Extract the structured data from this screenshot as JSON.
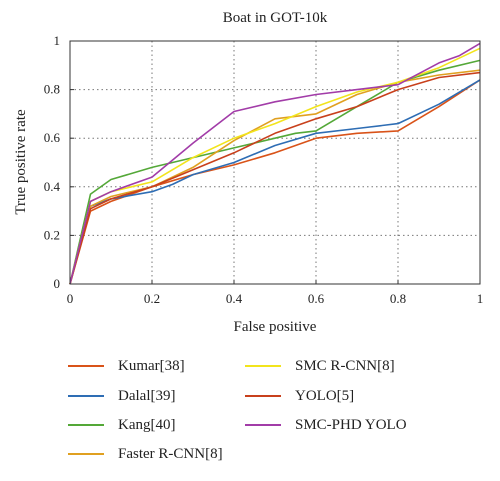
{
  "chart_data": {
    "type": "line",
    "title": "Boat in GOT-10k",
    "xlabel": "False positive",
    "ylabel": "True positive rate",
    "xlim": [
      0,
      1
    ],
    "ylim": [
      0,
      1
    ],
    "xticks": [
      "0",
      "0.2",
      "0.4",
      "0.6",
      "0.8",
      "1"
    ],
    "yticks": [
      "0",
      "0.2",
      "0.4",
      "0.6",
      "0.8",
      "1"
    ],
    "grid": true,
    "series": [
      {
        "name": "Kumar[38]",
        "color": "#d95319",
        "x": [
          0,
          0.05,
          0.1,
          0.2,
          0.3,
          0.4,
          0.5,
          0.6,
          0.7,
          0.8,
          0.9,
          1.0
        ],
        "y": [
          0,
          0.3,
          0.34,
          0.4,
          0.45,
          0.49,
          0.54,
          0.6,
          0.62,
          0.63,
          0.73,
          0.84
        ]
      },
      {
        "name": "Dalal[39]",
        "color": "#2e6db4",
        "x": [
          0,
          0.05,
          0.1,
          0.2,
          0.25,
          0.3,
          0.4,
          0.5,
          0.6,
          0.7,
          0.8,
          0.9,
          1.0
        ],
        "y": [
          0,
          0.32,
          0.35,
          0.38,
          0.41,
          0.45,
          0.5,
          0.57,
          0.62,
          0.64,
          0.66,
          0.74,
          0.84
        ]
      },
      {
        "name": "Kang[40]",
        "color": "#54a838",
        "x": [
          0,
          0.05,
          0.1,
          0.2,
          0.3,
          0.4,
          0.5,
          0.55,
          0.6,
          0.7,
          0.8,
          0.9,
          1.0
        ],
        "y": [
          0,
          0.37,
          0.43,
          0.48,
          0.52,
          0.56,
          0.6,
          0.62,
          0.63,
          0.73,
          0.83,
          0.88,
          0.92
        ]
      },
      {
        "name": "Faster R-CNN[8]",
        "color": "#e0a020",
        "x": [
          0,
          0.05,
          0.1,
          0.2,
          0.3,
          0.4,
          0.5,
          0.6,
          0.7,
          0.8,
          0.9,
          1.0
        ],
        "y": [
          0,
          0.32,
          0.36,
          0.4,
          0.48,
          0.59,
          0.68,
          0.7,
          0.78,
          0.83,
          0.86,
          0.88
        ]
      },
      {
        "name": "SMC R-CNN[8]",
        "color": "#f2e41c",
        "x": [
          0,
          0.05,
          0.1,
          0.2,
          0.3,
          0.4,
          0.5,
          0.6,
          0.7,
          0.8,
          0.85,
          0.9,
          1.0
        ],
        "y": [
          0,
          0.34,
          0.38,
          0.42,
          0.52,
          0.6,
          0.66,
          0.73,
          0.79,
          0.83,
          0.86,
          0.89,
          0.97
        ]
      },
      {
        "name": "YOLO[5]",
        "color": "#c8401c",
        "x": [
          0,
          0.05,
          0.1,
          0.2,
          0.3,
          0.4,
          0.5,
          0.6,
          0.7,
          0.8,
          0.9,
          1.0
        ],
        "y": [
          0,
          0.31,
          0.35,
          0.4,
          0.47,
          0.54,
          0.62,
          0.68,
          0.73,
          0.8,
          0.85,
          0.87
        ]
      },
      {
        "name": "SMC-PHD YOLO",
        "color": "#a23ca8",
        "x": [
          0,
          0.05,
          0.1,
          0.2,
          0.3,
          0.4,
          0.5,
          0.6,
          0.7,
          0.8,
          0.9,
          0.95,
          1.0
        ],
        "y": [
          0,
          0.34,
          0.38,
          0.44,
          0.58,
          0.71,
          0.75,
          0.78,
          0.8,
          0.82,
          0.91,
          0.94,
          0.99
        ]
      }
    ]
  }
}
